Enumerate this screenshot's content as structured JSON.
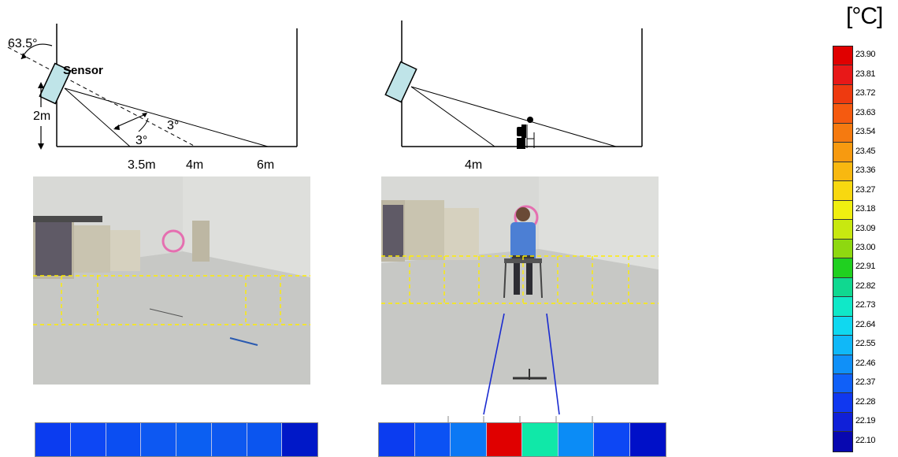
{
  "diagram_left": {
    "angle_label": "63.5°",
    "sensor_label": "Sensor",
    "height_label": "2m",
    "angle_a": "3°",
    "angle_b": "3°",
    "dist_1": "3.5m",
    "dist_2": "4m",
    "dist_3": "6m"
  },
  "diagram_right": {
    "dist": "4m"
  },
  "strip_left": {
    "colors": [
      "#0b3cf0",
      "#0d47f4",
      "#0b4ef2",
      "#0d58f2",
      "#0b5ff2",
      "#0d58f0",
      "#0b55ef",
      "#0018c8"
    ]
  },
  "strip_right": {
    "colors": [
      "#0b3cf0",
      "#0b52f4",
      "#0c78f4",
      "#e00000",
      "#10e8a8",
      "#0b8cf6",
      "#0d47f4",
      "#0010c8"
    ]
  },
  "scale": {
    "unit": "[°C]",
    "labels": [
      "23.90",
      "23.81",
      "23.72",
      "23.63",
      "23.54",
      "23.45",
      "23.36",
      "23.27",
      "23.18",
      "23.09",
      "23.00",
      "22.91",
      "22.82",
      "22.73",
      "22.64",
      "22.55",
      "22.46",
      "22.37",
      "22.28",
      "22.19",
      "22.10"
    ],
    "colors": [
      "#e00000",
      "#e81818",
      "#ee3a10",
      "#f55a10",
      "#f57a10",
      "#f79a10",
      "#f8b810",
      "#f8d810",
      "#f0ef10",
      "#c8e810",
      "#8ed810",
      "#20d020",
      "#10d890",
      "#10e8c8",
      "#10d8f0",
      "#10b8f8",
      "#1090f8",
      "#1060f8",
      "#1038f0",
      "#1020d8",
      "#0808b0"
    ]
  }
}
